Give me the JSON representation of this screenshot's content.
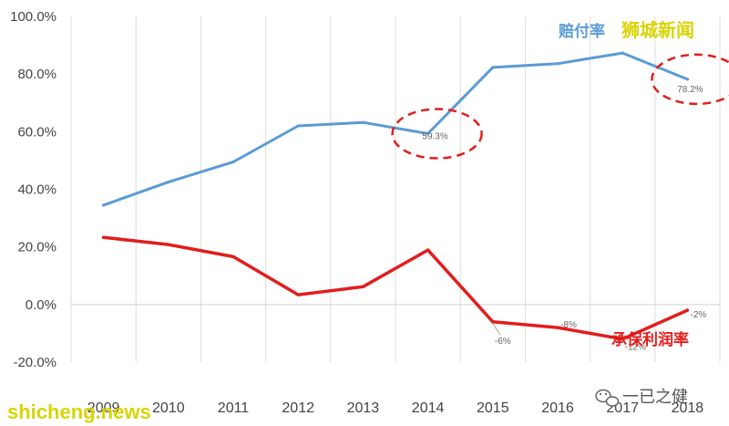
{
  "chart_data": {
    "type": "line",
    "title": "",
    "xlabel": "",
    "ylabel": "",
    "categories": [
      "2009",
      "2010",
      "2011",
      "2012",
      "2013",
      "2014",
      "2015",
      "2016",
      "2017",
      "2018"
    ],
    "ylim": [
      -20,
      100
    ],
    "ytick_labels": [
      "100.0%",
      "80.0%",
      "60.0%",
      "40.0%",
      "20.0%",
      "0.0%",
      "-20.0%"
    ],
    "ytick_values": [
      100,
      80,
      60,
      40,
      20,
      0,
      -20
    ],
    "grid": "vertical",
    "series": [
      {
        "name": "赔付率",
        "color": "#5b9bd5",
        "values": [
          34.5,
          42.5,
          49.5,
          62,
          63.2,
          59.3,
          82.3,
          83.6,
          87.3,
          78.2
        ],
        "data_labels": [
          {
            "index": 5,
            "text": "59.3%"
          },
          {
            "index": 9,
            "text": "78.2%"
          }
        ]
      },
      {
        "name": "承保利润率",
        "color": "#e21d1d",
        "values": [
          23.3,
          20.8,
          16.6,
          3.4,
          6.2,
          18.9,
          -6,
          -8,
          -12,
          -2
        ],
        "data_labels": [
          {
            "index": 6,
            "text": "-6%"
          },
          {
            "index": 7,
            "text": "-8%"
          },
          {
            "index": 8,
            "text": "-12%"
          },
          {
            "index": 9,
            "text": "-2%"
          }
        ]
      }
    ],
    "annotations": [
      {
        "type": "dashed-ellipse",
        "color": "#e21d1d",
        "series": 0,
        "index": 5
      },
      {
        "type": "dashed-ellipse",
        "color": "#e21d1d",
        "series": 0,
        "index": 9
      }
    ]
  },
  "watermarks": {
    "top_right": "狮城新闻",
    "bottom_left": "shicheng.news",
    "wechat_account": "一已之健"
  },
  "icons": {
    "wechat": "wechat-icon"
  }
}
